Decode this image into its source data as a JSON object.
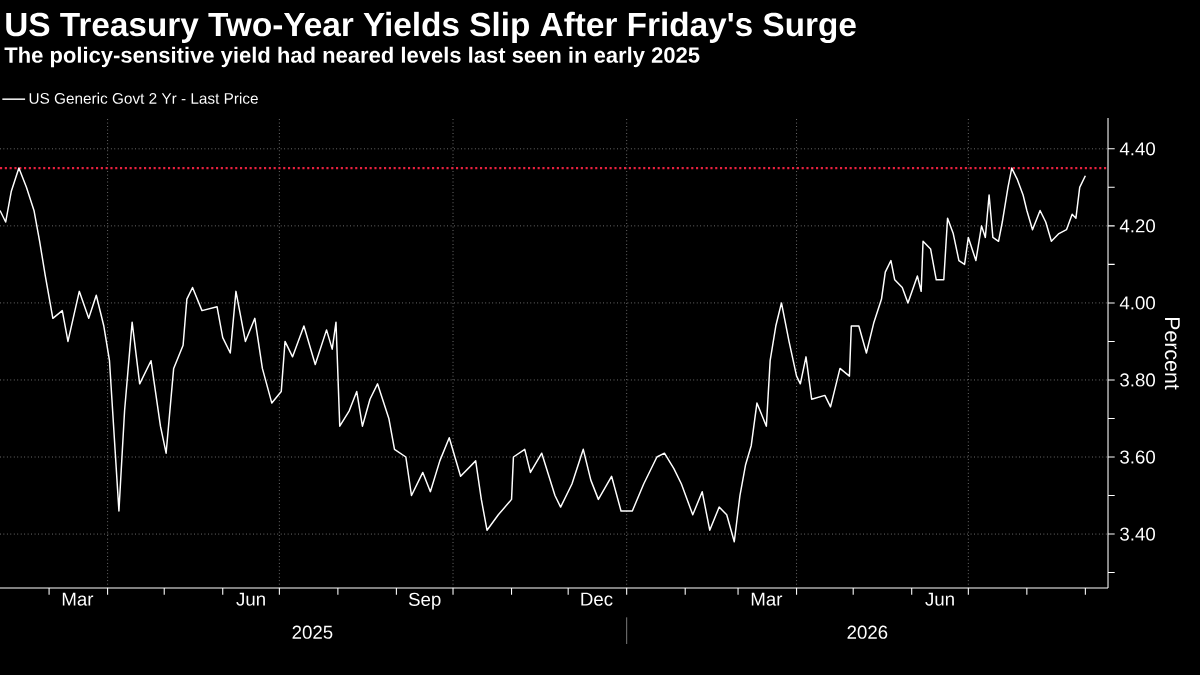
{
  "chart_data": {
    "type": "line",
    "title": "US Treasury Two-Year Yields Slip After Friday's Surge",
    "subtitle": "The policy-sensitive yield had neared levels last seen in early 2025",
    "ylabel": "Percent",
    "annotations": [
      "2025",
      "2026"
    ],
    "x": [
      "2025-02-03",
      "2025-02-06",
      "2025-02-09",
      "2025-02-13",
      "2025-02-17",
      "2025-02-21",
      "2025-02-24",
      "2025-02-27",
      "2025-03-03",
      "2025-03-08",
      "2025-03-11",
      "2025-03-17",
      "2025-03-22",
      "2025-03-26",
      "2025-03-30",
      "2025-04-02",
      "2025-04-07",
      "2025-04-10",
      "2025-04-14",
      "2025-04-18",
      "2025-04-24",
      "2025-04-29",
      "2025-05-02",
      "2025-05-06",
      "2025-05-11",
      "2025-05-13",
      "2025-05-16",
      "2025-05-21",
      "2025-05-29",
      "2025-06-01",
      "2025-06-05",
      "2025-06-08",
      "2025-06-13",
      "2025-06-18",
      "2025-06-22",
      "2025-06-27",
      "2025-07-02",
      "2025-07-04",
      "2025-07-08",
      "2025-07-14",
      "2025-07-20",
      "2025-07-26",
      "2025-07-29",
      "2025-07-31",
      "2025-08-02",
      "2025-08-07",
      "2025-08-11",
      "2025-08-14",
      "2025-08-18",
      "2025-08-22",
      "2025-08-28",
      "2025-08-31",
      "2025-09-06",
      "2025-09-09",
      "2025-09-15",
      "2025-09-19",
      "2025-09-24",
      "2025-09-29",
      "2025-10-05",
      "2025-10-13",
      "2025-10-16",
      "2025-10-19",
      "2025-10-25",
      "2025-11-01",
      "2025-11-02",
      "2025-11-08",
      "2025-11-11",
      "2025-11-17",
      "2025-11-24",
      "2025-11-27",
      "2025-12-03",
      "2025-12-09",
      "2025-12-13",
      "2025-12-17",
      "2025-12-24",
      "2025-12-29",
      "2026-01-04",
      "2026-01-10",
      "2026-01-17",
      "2026-01-21",
      "2026-01-26",
      "2026-01-30",
      "2026-02-05",
      "2026-02-10",
      "2026-02-14",
      "2026-02-19",
      "2026-02-23",
      "2026-02-27",
      "2026-03-02",
      "2026-03-05",
      "2026-03-08",
      "2026-03-11",
      "2026-03-16",
      "2026-03-18",
      "2026-03-21",
      "2026-03-24",
      "2026-03-28",
      "2026-04-01",
      "2026-04-03",
      "2026-04-06",
      "2026-04-09",
      "2026-04-16",
      "2026-04-19",
      "2026-04-24",
      "2026-04-29",
      "2026-04-30",
      "2026-05-04",
      "2026-05-08",
      "2026-05-12",
      "2026-05-16",
      "2026-05-18",
      "2026-05-21",
      "2026-05-23",
      "2026-05-27",
      "2026-05-30",
      "2026-06-04",
      "2026-06-06",
      "2026-06-07",
      "2026-06-11",
      "2026-06-14",
      "2026-06-18",
      "2026-06-20",
      "2026-06-23",
      "2026-06-26",
      "2026-06-29",
      "2026-07-01",
      "2026-07-05",
      "2026-07-08",
      "2026-07-10",
      "2026-07-12",
      "2026-07-14",
      "2026-07-17",
      "2026-07-19",
      "2026-07-22",
      "2026-07-24",
      "2026-07-27",
      "2026-07-30",
      "2026-08-01",
      "2026-08-04",
      "2026-08-08",
      "2026-08-11",
      "2026-08-14",
      "2026-08-16",
      "2026-08-18",
      "2026-08-22",
      "2026-08-25",
      "2026-08-27",
      "2026-08-29",
      "2026-09-01"
    ],
    "series": [
      {
        "name": "US Generic Govt 2 Yr - Last Price",
        "color": "#ffffff",
        "values": [
          4.24,
          4.21,
          4.29,
          4.35,
          4.3,
          4.24,
          4.16,
          4.07,
          3.96,
          3.98,
          3.9,
          4.03,
          3.96,
          4.02,
          3.94,
          3.85,
          3.46,
          3.72,
          3.95,
          3.79,
          3.85,
          3.68,
          3.61,
          3.83,
          3.89,
          4.01,
          4.04,
          3.98,
          3.99,
          3.91,
          3.87,
          4.03,
          3.9,
          3.96,
          3.83,
          3.74,
          3.77,
          3.9,
          3.86,
          3.94,
          3.84,
          3.93,
          3.88,
          3.95,
          3.68,
          3.72,
          3.77,
          3.68,
          3.75,
          3.79,
          3.7,
          3.62,
          3.6,
          3.5,
          3.56,
          3.51,
          3.59,
          3.65,
          3.55,
          3.59,
          3.49,
          3.41,
          3.45,
          3.49,
          3.6,
          3.62,
          3.56,
          3.61,
          3.5,
          3.47,
          3.53,
          3.62,
          3.54,
          3.49,
          3.55,
          3.46,
          3.46,
          3.53,
          3.6,
          3.61,
          3.57,
          3.53,
          3.45,
          3.51,
          3.41,
          3.47,
          3.45,
          3.38,
          3.5,
          3.58,
          3.63,
          3.74,
          3.68,
          3.85,
          3.94,
          4.0,
          3.9,
          3.81,
          3.79,
          3.86,
          3.75,
          3.76,
          3.73,
          3.83,
          3.81,
          3.94,
          3.94,
          3.87,
          3.95,
          4.01,
          4.08,
          4.11,
          4.06,
          4.04,
          4.0,
          4.07,
          4.03,
          4.16,
          4.14,
          4.06,
          4.06,
          4.22,
          4.18,
          4.11,
          4.1,
          4.17,
          4.11,
          4.2,
          4.17,
          4.28,
          4.17,
          4.16,
          4.21,
          4.3,
          4.35,
          4.32,
          4.28,
          4.24,
          4.19,
          4.24,
          4.21,
          4.16,
          4.17,
          4.18,
          4.19,
          4.23,
          4.22,
          4.3,
          4.33
        ]
      }
    ],
    "xlim": [
      "2025-02-03",
      "2026-09-13"
    ],
    "ylim": [
      3.26,
      4.48
    ],
    "xticks": [
      {
        "value": "2025-03-01",
        "label": null
      },
      {
        "value": "2025-04-01",
        "label": null
      },
      {
        "value": "2025-05-01",
        "label": null
      },
      {
        "value": "2025-06-01",
        "label": null
      },
      {
        "value": "2025-07-01",
        "label": null
      },
      {
        "value": "2025-08-01",
        "label": null
      },
      {
        "value": "2025-09-01",
        "label": null
      },
      {
        "value": "2025-10-01",
        "label": null
      },
      {
        "value": "2025-11-01",
        "label": null
      },
      {
        "value": "2025-12-01",
        "label": null
      },
      {
        "value": "2026-01-01",
        "label": null
      },
      {
        "value": "2026-02-01",
        "label": null
      },
      {
        "value": "2026-03-01",
        "label": null
      },
      {
        "value": "2026-04-01",
        "label": null
      },
      {
        "value": "2026-05-01",
        "label": null
      },
      {
        "value": "2026-06-01",
        "label": null
      },
      {
        "value": "2026-07-01",
        "label": null
      },
      {
        "value": "2026-08-01",
        "label": null
      },
      {
        "value": "2026-09-01",
        "label": null
      },
      {
        "value": "2025-03-16",
        "label": "Mar"
      },
      {
        "value": "2025-06-16",
        "label": "Jun"
      },
      {
        "value": "2025-09-16",
        "label": "Sep"
      },
      {
        "value": "2025-12-16",
        "label": "Dec"
      },
      {
        "value": "2026-03-16",
        "label": "Mar"
      },
      {
        "value": "2026-06-16",
        "label": "Jun"
      }
    ],
    "yticks": [
      {
        "value": 3.3,
        "label": null
      },
      {
        "value": 3.4,
        "label": "3.40"
      },
      {
        "value": 3.5,
        "label": null
      },
      {
        "value": 3.6,
        "label": "3.60"
      },
      {
        "value": 3.7,
        "label": null
      },
      {
        "value": 3.8,
        "label": "3.80"
      },
      {
        "value": 3.9,
        "label": null
      },
      {
        "value": 4.0,
        "label": "4.00"
      },
      {
        "value": 4.1,
        "label": null
      },
      {
        "value": 4.2,
        "label": "4.20"
      },
      {
        "value": 4.3,
        "label": null
      },
      {
        "value": 4.4,
        "label": "4.40"
      }
    ],
    "grid": true,
    "legend": "top left",
    "marker": "none",
    "line_style": "solid",
    "ref_lines": [
      {
        "axis": "y",
        "value": 4.35,
        "color": "#e8213f",
        "line_style": "dotted"
      }
    ]
  }
}
